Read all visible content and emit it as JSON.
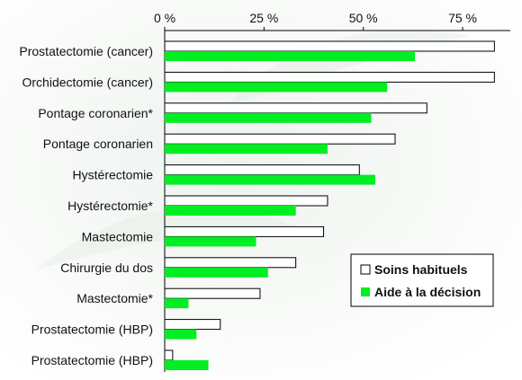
{
  "chart_data": {
    "type": "bar",
    "orientation": "horizontal",
    "categories": [
      "Prostatectomie (cancer)",
      "Orchidectomie (cancer)",
      "Pontage coronarien*",
      "Pontage coronarien",
      "Hystérectomie",
      "Hystérectomie*",
      "Mastectomie",
      "Chirurgie du dos",
      "Mastectomie*",
      "Prostatectomie (HBP)",
      "Prostatectomie (HBP)"
    ],
    "series": [
      {
        "name": "Soins habituels",
        "color": "#ffffff",
        "values": [
          83,
          83,
          66,
          58,
          49,
          41,
          40,
          33,
          24,
          14,
          2
        ]
      },
      {
        "name": "Aide à la décision",
        "color": "#00ee22",
        "values": [
          63,
          56,
          52,
          41,
          53,
          33,
          23,
          26,
          6,
          8,
          11
        ]
      }
    ],
    "x_ticks": [
      "0 %",
      "25 %",
      "50 %",
      "75 %"
    ],
    "x_tick_values": [
      0,
      25,
      50,
      75
    ],
    "xlim": [
      0,
      87
    ],
    "grid": false,
    "legend_position": "bottom-right",
    "title": "",
    "xlabel": "",
    "ylabel": ""
  }
}
